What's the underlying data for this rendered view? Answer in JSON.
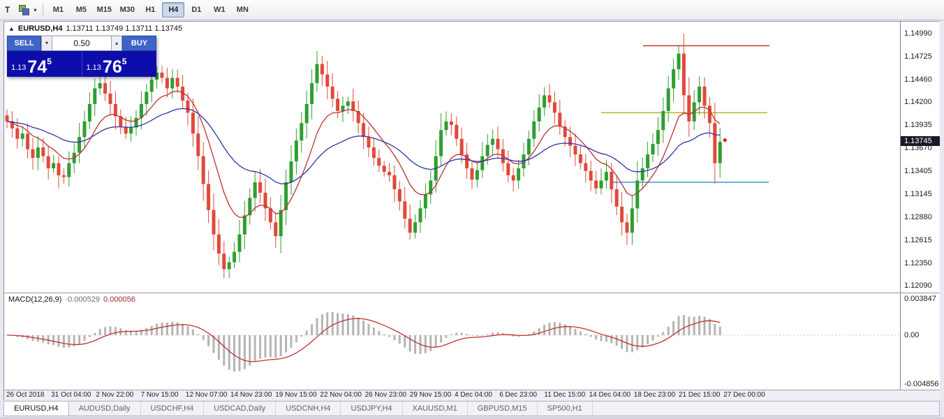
{
  "toolbar": {
    "window_icon_label": "T",
    "timeframes": [
      "M1",
      "M5",
      "M15",
      "M30",
      "H1",
      "H4",
      "D1",
      "W1",
      "MN"
    ],
    "active_timeframe": "H4"
  },
  "chart_header": {
    "symbol": "EURUSD,H4",
    "ohlc_text": "1.13711 1.13749 1.13711 1.13745"
  },
  "trade_panel": {
    "sell_label": "SELL",
    "buy_label": "BUY",
    "volume": "0.50",
    "bid": {
      "prefix": "1.13",
      "big": "74",
      "sup": "5"
    },
    "ask": {
      "prefix": "1.13",
      "big": "76",
      "sup": "5"
    }
  },
  "price_axis": {
    "ticks": [
      "1.14990",
      "1.14725",
      "1.14460",
      "1.14200",
      "1.13935",
      "1.13670",
      "1.13405",
      "1.13145",
      "1.12880",
      "1.12615",
      "1.12350",
      "1.12090"
    ],
    "last_price": "1.13745"
  },
  "macd_panel": {
    "name": "MACD(12,26,9)",
    "macd_value": "-0.000529",
    "signal_value": "0.000056",
    "axis_labels": [
      {
        "text": "0.003847",
        "y": 8
      },
      {
        "text": "0.00",
        "y": 60
      },
      {
        "text": "-0.004856",
        "y": 130
      }
    ]
  },
  "time_axis": [
    "26 Oct 2018",
    "31 Oct 04:00",
    "2 Nov 22:00",
    "7 Nov 15:00",
    "12 Nov 07:00",
    "14 Nov 23:00",
    "19 Nov 15:00",
    "22 Nov 04:00",
    "26 Nov 23:00",
    "29 Nov 15:00",
    "4 Dec 04:00",
    "6 Dec 23:00",
    "11 Dec 15:00",
    "14 Dec 04:00",
    "18 Dec 23:00",
    "21 Dec 15:00",
    "27 Dec 00:00"
  ],
  "tabs": [
    "EURUSD,H4",
    "AUDUSD,Daily",
    "USDCHF,H4",
    "USDCAD,Daily",
    "USDCNH,H4",
    "USDJPY,H4",
    "XAUUSD,M1",
    "GBPUSD,M15",
    "SP500,H1"
  ],
  "active_tab": "EURUSD,H4",
  "colors": {
    "bull": "#2f9e30",
    "bear": "#e0493a",
    "fast_ma": "#b73333",
    "slow_ma": "#3030a8",
    "macd_hist": "#b4b4b4",
    "macd_signal": "#c03030",
    "last_dot": "#dd2222"
  },
  "chart_data": {
    "type": "candlestick",
    "symbol": "EURUSD",
    "timeframe": "H4",
    "title": "EURUSD,H4",
    "ohlc_display": {
      "open": 1.13711,
      "high": 1.13749,
      "low": 1.13711,
      "close": 1.13745
    },
    "y_axis_ticks": [
      1.1499,
      1.14725,
      1.1446,
      1.142,
      1.13935,
      1.1367,
      1.13405,
      1.13145,
      1.1288,
      1.12615,
      1.1235,
      1.1209
    ],
    "x_range": [
      "26 Oct 2018",
      "27 Dec 2018"
    ],
    "closes": [
      1.1398,
      1.139,
      1.1378,
      1.1384,
      1.1366,
      1.1356,
      1.1368,
      1.1358,
      1.1344,
      1.135,
      1.1336,
      1.1334,
      1.135,
      1.1362,
      1.138,
      1.1398,
      1.1418,
      1.1436,
      1.1442,
      1.143,
      1.1418,
      1.1404,
      1.1392,
      1.1384,
      1.1391,
      1.1402,
      1.1418,
      1.1432,
      1.1446,
      1.1454,
      1.1448,
      1.1436,
      1.1448,
      1.1438,
      1.1422,
      1.1408,
      1.1384,
      1.1358,
      1.1326,
      1.1296,
      1.1268,
      1.1246,
      1.1228,
      1.1236,
      1.1248,
      1.1268,
      1.129,
      1.131,
      1.1328,
      1.1316,
      1.1298,
      1.1282,
      1.1266,
      1.1296,
      1.1328,
      1.1352,
      1.1376,
      1.1396,
      1.1418,
      1.1442,
      1.1464,
      1.1452,
      1.1438,
      1.1424,
      1.141,
      1.1416,
      1.1421,
      1.141,
      1.1396,
      1.138,
      1.1368,
      1.1356,
      1.1347,
      1.134,
      1.1336,
      1.132,
      1.1306,
      1.1286,
      1.127,
      1.1282,
      1.1298,
      1.1314,
      1.133,
      1.1358,
      1.1388,
      1.1398,
      1.1394,
      1.1378,
      1.136,
      1.1344,
      1.1331,
      1.1342,
      1.1358,
      1.1371,
      1.1378,
      1.1366,
      1.135,
      1.1336,
      1.133,
      1.1344,
      1.136,
      1.1378,
      1.1398,
      1.1414,
      1.1428,
      1.142,
      1.1408,
      1.1392,
      1.138,
      1.137,
      1.136,
      1.135,
      1.1341,
      1.133,
      1.1321,
      1.133,
      1.134,
      1.132,
      1.13,
      1.1282,
      1.127,
      1.1298,
      1.133,
      1.1344,
      1.136,
      1.1372,
      1.1388,
      1.141,
      1.1436,
      1.1458,
      1.1476,
      1.1428,
      1.1398,
      1.142,
      1.1438,
      1.1416,
      1.1396,
      1.135,
      1.13745
    ],
    "overlays": [
      {
        "name": "fast-ma",
        "type": "ema",
        "period": 10,
        "color_key": "fast_ma"
      },
      {
        "name": "slow-ma",
        "type": "ema",
        "period": 30,
        "color_key": "slow_ma"
      }
    ],
    "hlines": [
      {
        "name": "resistance-line",
        "price": 1.1485,
        "color": "#c43434",
        "x1": 915,
        "x2": 1096
      },
      {
        "name": "pivot-line",
        "price": 1.1408,
        "color": "#b6b622",
        "x1": 855,
        "x2": 1093
      },
      {
        "name": "support-line",
        "price": 1.1328,
        "color": "#3b93dc",
        "x1": 868,
        "x2": 1095
      }
    ],
    "indicator": {
      "type": "MACD",
      "fast": 12,
      "slow": 26,
      "signal": 9,
      "current_value": -0.000529,
      "current_signal": 5.6e-05,
      "axis_max": 0.003847,
      "axis_min": -0.004856
    }
  }
}
